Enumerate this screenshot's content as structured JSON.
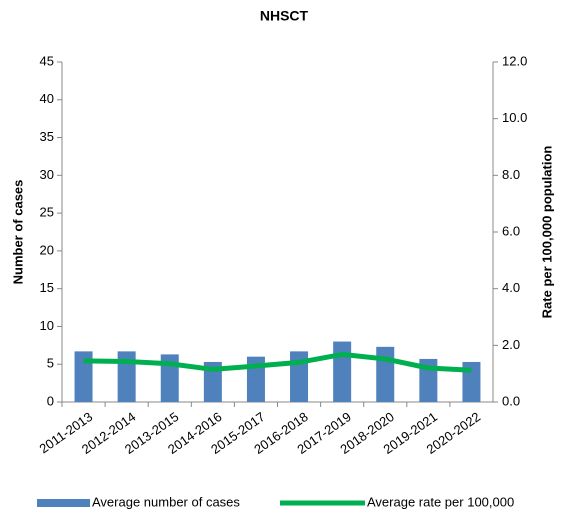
{
  "chart_data": {
    "type": "bar",
    "title": "NHSCT",
    "y_label": "Number of cases",
    "y2_label": "Rate per 100,000 population",
    "categories": [
      "2011-2013",
      "2012-2014",
      "2013-2015",
      "2014-2016",
      "2015-2017",
      "2016-2018",
      "2017-2019",
      "2018-2020",
      "2019-2021",
      "2020-2022"
    ],
    "series": [
      {
        "name": "Average number of cases",
        "type": "bar",
        "color": "#4f81bd",
        "values": [
          6.7,
          6.7,
          6.3,
          5.3,
          6.0,
          6.7,
          8.0,
          7.3,
          5.7,
          5.3
        ]
      },
      {
        "name": "Average rate per 100,000",
        "type": "line",
        "axis": "y2",
        "color": "#00b050",
        "values": [
          1.45,
          1.43,
          1.35,
          1.15,
          1.27,
          1.4,
          1.68,
          1.52,
          1.2,
          1.12
        ]
      }
    ],
    "ylim": [
      0,
      45
    ],
    "yticks": [
      0,
      5,
      10,
      15,
      20,
      25,
      30,
      35,
      40,
      45
    ],
    "y2lim": [
      0,
      12
    ],
    "y2ticks": [
      {
        "value": 0,
        "label": "0.0"
      },
      {
        "value": 2,
        "label": "2.0"
      },
      {
        "value": 4,
        "label": "4.0"
      },
      {
        "value": 6,
        "label": "6.0"
      },
      {
        "value": 8,
        "label": "8.0"
      },
      {
        "value": 10,
        "label": "10.0"
      },
      {
        "value": 12,
        "label": "12.0"
      }
    ],
    "legend": "bottom"
  }
}
